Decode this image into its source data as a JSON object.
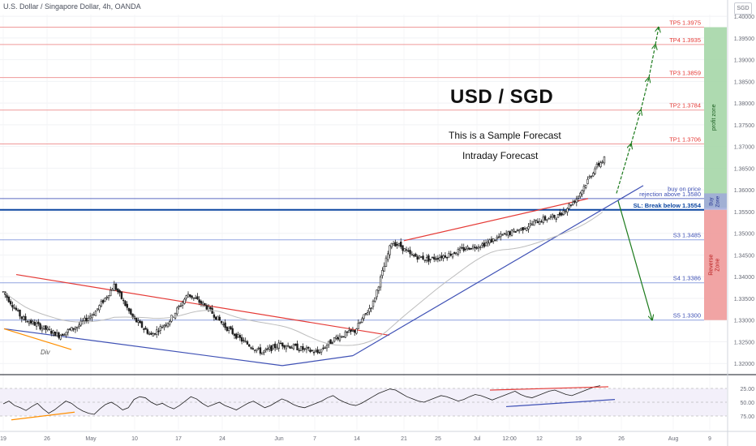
{
  "header": {
    "symbol_line": "U.S. Dollar / Singapore Dollar, 4h, OANDA",
    "currency_badge": "SGD"
  },
  "annotations": {
    "title": "USD / SGD",
    "subtitle1": "This is a Sample Forecast",
    "subtitle2": "Intraday Forecast",
    "div_label": "Div"
  },
  "colors": {
    "up_candle": "#ffffff",
    "down_candle": "#1f1f1f",
    "resistance_line": "#e53935",
    "support_line": "#3f51b5",
    "target_line": "#ef9a9a",
    "support_level_line": "#90a4e0",
    "profit_zone": "#a5d6a7",
    "buy_zone": "#9fa8da",
    "reverse_zone": "#ef9a9a",
    "arrow": "#1b7a1b",
    "rsi_line": "#1f1f1f",
    "div_line": "#ff8f00",
    "ma_line": "#bdbdbd"
  },
  "chart_data": {
    "type": "line",
    "title": "USD / SGD",
    "xlabel": "",
    "ylabel": "",
    "ylim": [
      1.3178,
      1.4004
    ],
    "y_ticks": [
      1.32,
      1.325,
      1.33,
      1.335,
      1.34,
      1.345,
      1.35,
      1.355,
      1.36,
      1.365,
      1.37,
      1.375,
      1.38,
      1.385,
      1.39,
      1.395,
      1.4
    ],
    "y_tick_labels": [
      "1.32000",
      "1.32500",
      "1.33000",
      "1.33500",
      "1.34000",
      "1.34500",
      "1.35000",
      "1.35500",
      "1.36000",
      "1.36500",
      "1.37000",
      "1.37500",
      "1.38000",
      "1.38500",
      "1.39000",
      "1.39500",
      "1.40000"
    ],
    "x_tick_labels": [
      "19",
      "26",
      "May",
      "10",
      "17",
      "24",
      "Jun",
      "7",
      "14",
      "21",
      "25",
      "Jul",
      "12:00",
      "12",
      "19",
      "26",
      "Aug",
      "9"
    ],
    "series": [
      {
        "x_index": [
          0,
          5,
          10,
          20,
          30,
          40,
          50,
          60,
          70,
          80,
          90,
          100,
          110,
          120,
          130,
          140,
          150,
          160,
          170,
          180,
          190,
          200,
          210,
          215,
          220,
          230,
          240,
          250,
          260,
          270,
          280,
          290,
          300,
          310,
          320,
          325
        ],
        "values": [
          1.3365,
          1.3335,
          1.3305,
          1.3285,
          1.3265,
          1.3285,
          1.332,
          1.338,
          1.3305,
          1.3265,
          1.33,
          1.336,
          1.333,
          1.3285,
          1.325,
          1.3225,
          1.3245,
          1.3235,
          1.3225,
          1.326,
          1.3275,
          1.334,
          1.348,
          1.347,
          1.345,
          1.344,
          1.345,
          1.3465,
          1.3475,
          1.3495,
          1.351,
          1.353,
          1.354,
          1.358,
          1.365,
          1.3672
        ]
      }
    ],
    "levels": [
      {
        "label": "TP5 1.3975",
        "value": 1.3975,
        "kind": "target"
      },
      {
        "label": "TP4 1.3935",
        "value": 1.3935,
        "kind": "target"
      },
      {
        "label": "TP3 1.3859",
        "value": 1.3859,
        "kind": "target"
      },
      {
        "label": "TP2 1.3784",
        "value": 1.3784,
        "kind": "target"
      },
      {
        "label": "TP1 1.3706",
        "value": 1.3706,
        "kind": "target"
      },
      {
        "label": "buy on price",
        "value": 1.3592,
        "kind": "buy"
      },
      {
        "label": "rejection above 1.3580",
        "value": 1.358,
        "kind": "buy"
      },
      {
        "label": "SL: Break below 1.3554",
        "value": 1.3554,
        "kind": "stop"
      },
      {
        "label": "S3 1.3485",
        "value": 1.3485,
        "kind": "support"
      },
      {
        "label": "S4 1.3386",
        "value": 1.3386,
        "kind": "support"
      },
      {
        "label": "S5 1.3300",
        "value": 1.33,
        "kind": "support"
      }
    ],
    "zones": [
      {
        "label": "profit zone",
        "from": 1.3559,
        "to": 1.3975
      },
      {
        "label": "Buy Zone",
        "from": 1.3554,
        "to": 1.3592
      },
      {
        "label": "Reverse Zone",
        "from": 1.33,
        "to": 1.3554
      }
    ],
    "rsi": {
      "ylim": [
        0,
        100
      ],
      "y_ticks": [
        25,
        50,
        75
      ],
      "y_tick_labels": [
        "25.00",
        "50.00",
        "75.00"
      ],
      "values": [
        47,
        52,
        44,
        40,
        35,
        42,
        48,
        38,
        30,
        36,
        44,
        52,
        48,
        40,
        34,
        30,
        28,
        38,
        46,
        50,
        44,
        36,
        40,
        55,
        60,
        58,
        50,
        45,
        48,
        42,
        38,
        44,
        52,
        60,
        56,
        48,
        42,
        46,
        50,
        44,
        40,
        36,
        42,
        48,
        52,
        46,
        40,
        44,
        50,
        56,
        52,
        46,
        42,
        40,
        44,
        48,
        52,
        58,
        62,
        55,
        50,
        46,
        44,
        48,
        54,
        60,
        66,
        70,
        74,
        72,
        66,
        60,
        56,
        52,
        50,
        54,
        58,
        62,
        60,
        56,
        52,
        55,
        60,
        64,
        62,
        58,
        54,
        58,
        62,
        66,
        70,
        64,
        60,
        58,
        62,
        66,
        70,
        72,
        68,
        64,
        62,
        66,
        70,
        74,
        78,
        80
      ]
    }
  }
}
